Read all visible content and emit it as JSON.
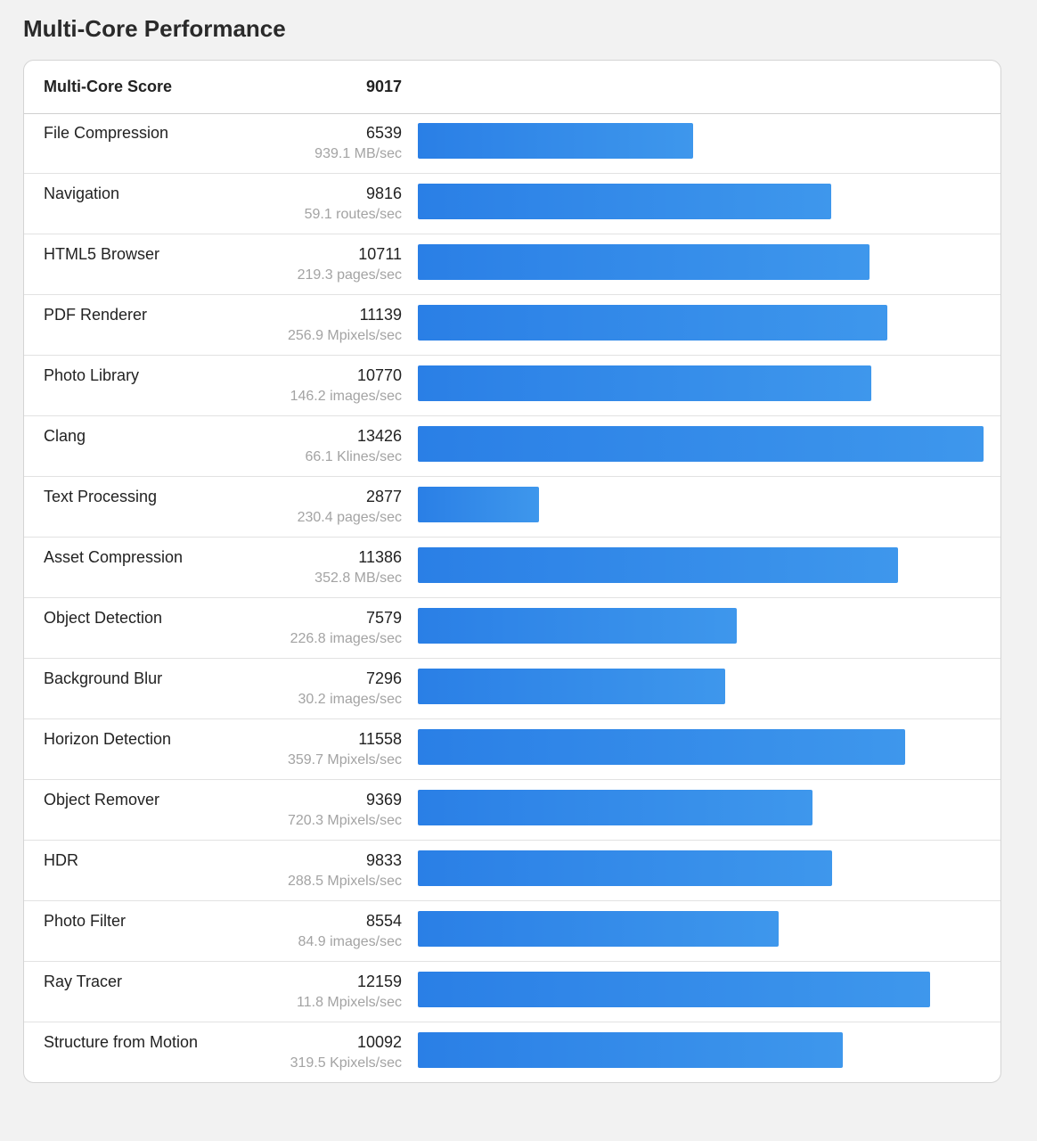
{
  "page_title": "Multi-Core Performance",
  "score": {
    "label": "Multi-Core Score",
    "value": "9017"
  },
  "colors": {
    "bar_start": "#2a7fe6",
    "bar_end": "#3e97ec",
    "background": "#f2f2f2"
  },
  "chart_data": {
    "type": "bar",
    "orientation": "horizontal",
    "xlim": [
      0,
      13426
    ],
    "grid": false,
    "categories": [
      "File Compression",
      "Navigation",
      "HTML5 Browser",
      "PDF Renderer",
      "Photo Library",
      "Clang",
      "Text Processing",
      "Asset Compression",
      "Object Detection",
      "Background Blur",
      "Horizon Detection",
      "Object Remover",
      "HDR",
      "Photo Filter",
      "Ray Tracer",
      "Structure from Motion"
    ],
    "values": [
      6539,
      9816,
      10711,
      11139,
      10770,
      13426,
      2877,
      11386,
      7579,
      7296,
      11558,
      9369,
      9833,
      8554,
      12159,
      10092
    ],
    "rates": [
      "939.1 MB/sec",
      "59.1 routes/sec",
      "219.3 pages/sec",
      "256.9 Mpixels/sec",
      "146.2 images/sec",
      "66.1 Klines/sec",
      "230.4 pages/sec",
      "352.8 MB/sec",
      "226.8 images/sec",
      "30.2 images/sec",
      "359.7 Mpixels/sec",
      "720.3 Mpixels/sec",
      "288.5 Mpixels/sec",
      "84.9 images/sec",
      "11.8 Mpixels/sec",
      "319.5 Kpixels/sec"
    ]
  }
}
